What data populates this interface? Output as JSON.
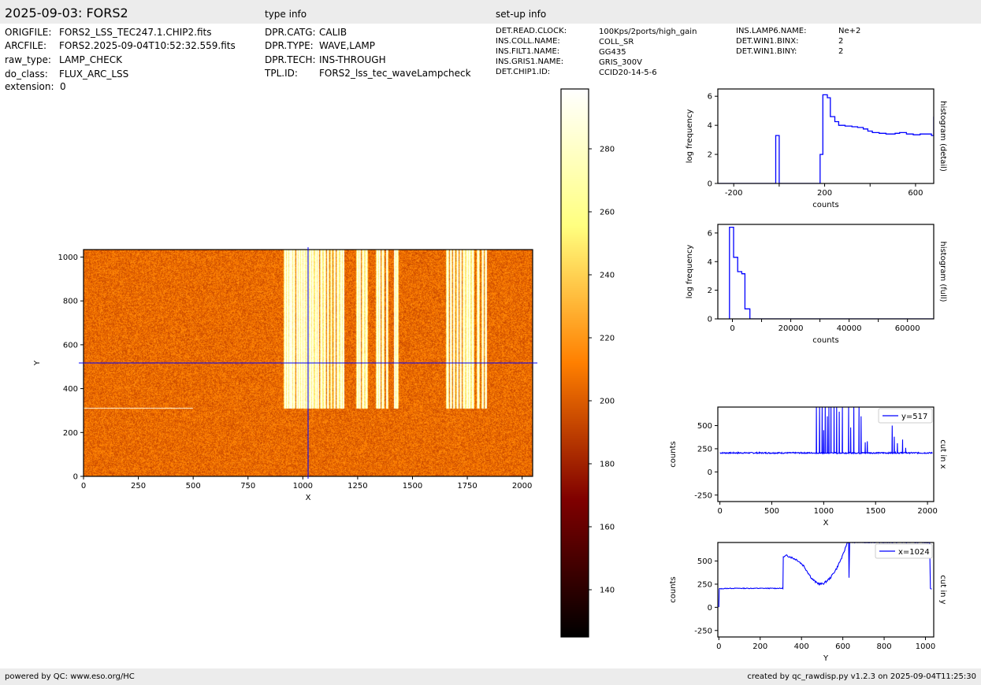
{
  "header": {
    "title": "2025-09-03: FORS2",
    "type_info_label": "type info",
    "setup_info_label": "set-up info"
  },
  "file_info": [
    {
      "key": "ORIGFILE:",
      "value": "FORS2_LSS_TEC247.1.CHIP2.fits"
    },
    {
      "key": "ARCFILE:",
      "value": "FORS2.2025-09-04T10:52:32.559.fits"
    },
    {
      "key": "raw_type:",
      "value": "LAMP_CHECK"
    },
    {
      "key": "do_class:",
      "value": "FLUX_ARC_LSS"
    },
    {
      "key": "extension:",
      "value": "0"
    }
  ],
  "type_info": [
    {
      "key": "DPR.CATG:",
      "value": "CALIB"
    },
    {
      "key": "DPR.TYPE:",
      "value": "WAVE,LAMP"
    },
    {
      "key": "DPR.TECH:",
      "value": "INS-THROUGH"
    },
    {
      "key": "TPL.ID:",
      "value": "FORS2_lss_tec_waveLampcheck"
    }
  ],
  "setup_info": [
    {
      "key": "DET.READ.CLOCK:",
      "value": "100Kps/2ports/high_gain"
    },
    {
      "key": "INS.COLL.NAME:",
      "value": "COLL_SR"
    },
    {
      "key": "INS.FILT1.NAME:",
      "value": "GG435"
    },
    {
      "key": "INS.GRIS1.NAME:",
      "value": "GRIS_300V"
    },
    {
      "key": "DET.CHIP1.ID:",
      "value": "CCID20-14-5-6"
    },
    {
      "key": "INS.LAMP6.NAME:",
      "value": "Ne+2"
    },
    {
      "key": "DET.WIN1.BINX:",
      "value": "2"
    },
    {
      "key": "DET.WIN1.BINY:",
      "value": "2"
    }
  ],
  "footer": {
    "left": "powered by QC: www.eso.org/HC",
    "right": "created by qc_rawdisp.py v1.2.3 on 2025-09-04T11:25:30"
  },
  "colors": {
    "band": "#ececec",
    "line": "#0000ff",
    "crosshair": "#0000ff",
    "colormap": "afmhot"
  },
  "chart_data": [
    {
      "id": "image",
      "type": "heatmap",
      "xlabel": "X",
      "ylabel": "Y",
      "xlim": [
        0,
        2048
      ],
      "ylim": [
        0,
        1034
      ],
      "xticks": [
        0,
        250,
        500,
        750,
        1000,
        1250,
        1500,
        1750,
        2000
      ],
      "yticks": [
        0,
        200,
        400,
        600,
        800,
        1000
      ],
      "background_level": 205,
      "crosshair": {
        "x": 1024,
        "y": 517
      },
      "bright_lines_y_range": [
        310,
        1034
      ],
      "bright_lines_x": [
        920,
        930,
        940,
        950,
        960,
        975,
        985,
        995,
        1005,
        1015,
        1025,
        1035,
        1045,
        1060,
        1070,
        1085,
        1100,
        1115,
        1130,
        1145,
        1160,
        1175,
        1185,
        1250,
        1260,
        1275,
        1290,
        1340,
        1350,
        1365,
        1385,
        1420,
        1430,
        1660,
        1675,
        1690,
        1705,
        1720,
        1735,
        1750,
        1760,
        1775,
        1800,
        1820,
        1835
      ],
      "horizontal_feature": {
        "y": 310,
        "x_range": [
          0,
          500
        ]
      }
    },
    {
      "id": "colorbar",
      "type": "heatmap",
      "colormap": "afmhot",
      "range": [
        125,
        299
      ],
      "ticks": [
        140,
        160,
        180,
        200,
        220,
        240,
        260,
        280
      ]
    },
    {
      "id": "hist-detail",
      "type": "line",
      "title": "histogram (detail)",
      "xlabel": "counts",
      "ylabel": "log frequency",
      "xlim": [
        -270,
        680
      ],
      "ylim": [
        0,
        6.5
      ],
      "xticks": [
        -200,
        0,
        200,
        400,
        600
      ],
      "xticklabels": [
        "-200",
        "",
        "200",
        "",
        "600"
      ],
      "yticks": [
        0,
        2,
        4,
        6
      ],
      "series": [
        {
          "steps": [
            [
              -270,
              0
            ],
            [
              -15,
              0
            ],
            [
              -15,
              3.3
            ],
            [
              0,
              3.3
            ],
            [
              0,
              0
            ],
            [
              180,
              0
            ],
            [
              180,
              2.0
            ],
            [
              192,
              2.0
            ],
            [
              192,
              6.1
            ],
            [
              212,
              6.1
            ],
            [
              212,
              5.9
            ],
            [
              225,
              5.9
            ],
            [
              225,
              4.6
            ],
            [
              245,
              4.6
            ],
            [
              245,
              4.25
            ],
            [
              262,
              4.25
            ],
            [
              262,
              4.0
            ],
            [
              290,
              4.0
            ],
            [
              290,
              3.95
            ],
            [
              320,
              3.95
            ],
            [
              320,
              3.9
            ],
            [
              345,
              3.9
            ],
            [
              345,
              3.85
            ],
            [
              370,
              3.85
            ],
            [
              370,
              3.75
            ],
            [
              390,
              3.75
            ],
            [
              390,
              3.6
            ],
            [
              410,
              3.6
            ],
            [
              410,
              3.5
            ],
            [
              440,
              3.5
            ],
            [
              440,
              3.45
            ],
            [
              470,
              3.45
            ],
            [
              470,
              3.4
            ],
            [
              510,
              3.4
            ],
            [
              510,
              3.45
            ],
            [
              530,
              3.45
            ],
            [
              530,
              3.5
            ],
            [
              560,
              3.5
            ],
            [
              560,
              3.4
            ],
            [
              590,
              3.4
            ],
            [
              590,
              3.35
            ],
            [
              620,
              3.35
            ],
            [
              620,
              3.4
            ],
            [
              670,
              3.4
            ],
            [
              670,
              3.3
            ],
            [
              680,
              3.3
            ],
            [
              680,
              4.6
            ]
          ]
        }
      ]
    },
    {
      "id": "hist-full",
      "type": "line",
      "title": "histogram (full)",
      "xlabel": "counts",
      "ylabel": "log frequency",
      "xlim": [
        -5000,
        69000
      ],
      "ylim": [
        0,
        6.6
      ],
      "xticks": [
        0,
        10000,
        20000,
        30000,
        40000,
        50000,
        60000
      ],
      "xticklabels": [
        "0",
        "",
        "20000",
        "",
        "40000",
        "",
        "60000"
      ],
      "yticks": [
        0,
        2,
        4,
        6
      ],
      "series": [
        {
          "steps": [
            [
              -1000,
              0
            ],
            [
              -1000,
              6.4
            ],
            [
              400,
              6.4
            ],
            [
              400,
              4.3
            ],
            [
              1800,
              4.3
            ],
            [
              1800,
              3.3
            ],
            [
              3200,
              3.3
            ],
            [
              3200,
              3.15
            ],
            [
              4300,
              3.15
            ],
            [
              4300,
              0.7
            ],
            [
              6000,
              0.7
            ],
            [
              6000,
              0
            ],
            [
              69000,
              0
            ]
          ]
        }
      ]
    },
    {
      "id": "cut-x",
      "type": "line",
      "title": "cut in x",
      "xlabel": "X",
      "ylabel": "counts",
      "xlim": [
        -20,
        2060
      ],
      "ylim": [
        -320,
        700
      ],
      "xticks": [
        0,
        500,
        1000,
        1500,
        2000
      ],
      "yticks": [
        -250,
        0,
        250,
        500
      ],
      "series": [
        {
          "name": "y=517",
          "baseline": 205,
          "peaks": [
            [
              930,
              700
            ],
            [
              960,
              700
            ],
            [
              985,
              700
            ],
            [
              1000,
              450
            ],
            [
              1015,
              700
            ],
            [
              1035,
              600
            ],
            [
              1050,
              700
            ],
            [
              1070,
              700
            ],
            [
              1100,
              700
            ],
            [
              1125,
              700
            ],
            [
              1150,
              650
            ],
            [
              1180,
              700
            ],
            [
              1240,
              700
            ],
            [
              1260,
              480
            ],
            [
              1290,
              700
            ],
            [
              1340,
              700
            ],
            [
              1360,
              600
            ],
            [
              1400,
              320
            ],
            [
              1420,
              330
            ],
            [
              1660,
              500
            ],
            [
              1680,
              380
            ],
            [
              1710,
              310
            ],
            [
              1760,
              350
            ],
            [
              1790,
              260
            ]
          ]
        }
      ]
    },
    {
      "id": "cut-y",
      "type": "line",
      "title": "cut in y",
      "xlabel": "Y",
      "ylabel": "counts",
      "xlim": [
        -5,
        1040
      ],
      "ylim": [
        -320,
        700
      ],
      "xticks": [
        0,
        200,
        400,
        600,
        800,
        1000
      ],
      "yticks": [
        -250,
        0,
        250,
        500
      ],
      "series": [
        {
          "name": "x=1024",
          "points": [
            [
              0,
              0
            ],
            [
              2,
              200
            ],
            [
              50,
              205
            ],
            [
              100,
              205
            ],
            [
              150,
              205
            ],
            [
              200,
              205
            ],
            [
              250,
              205
            ],
            [
              300,
              205
            ],
            [
              310,
              205
            ],
            [
              312,
              540
            ],
            [
              330,
              560
            ],
            [
              350,
              540
            ],
            [
              380,
              510
            ],
            [
              410,
              450
            ],
            [
              430,
              380
            ],
            [
              450,
              310
            ],
            [
              470,
              270
            ],
            [
              490,
              250
            ],
            [
              510,
              260
            ],
            [
              540,
              320
            ],
            [
              570,
              420
            ],
            [
              600,
              560
            ],
            [
              615,
              660
            ],
            [
              622,
              700
            ],
            [
              628,
              700
            ],
            [
              630,
              320
            ],
            [
              633,
              700
            ],
            [
              640,
              700
            ],
            [
              1020,
              700
            ],
            [
              1024,
              200
            ],
            [
              1030,
              200
            ]
          ]
        }
      ]
    }
  ]
}
